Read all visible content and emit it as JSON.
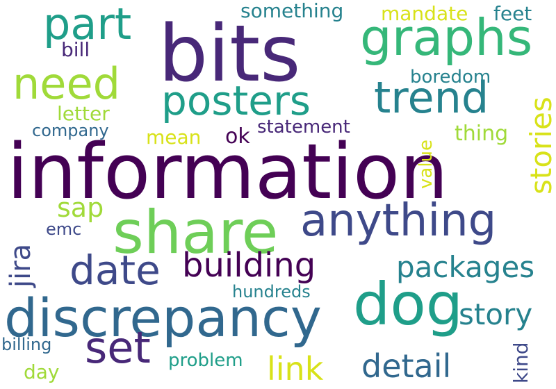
{
  "words": {
    "information": "information",
    "bits": "bits",
    "share": "share",
    "discrepancy": "discrepancy",
    "dog": "dog",
    "anything": "anything",
    "graphs": "graphs",
    "trend": "trend",
    "posters": "posters",
    "part": "part",
    "need": "need",
    "date": "date",
    "building": "building",
    "set": "set",
    "packages": "packages",
    "story": "story",
    "detail": "detail",
    "link": "link",
    "sap": "sap",
    "hundreds": "hundreds",
    "problem": "problem",
    "something": "something",
    "mandate": "mandate",
    "feet": "feet",
    "bill": "bill",
    "boredom": "boredom",
    "letter": "letter",
    "statement": "statement",
    "company": "company",
    "mean": "mean",
    "ok": "ok",
    "thing": "thing",
    "emc": "emc",
    "billing": "billing",
    "day": "day",
    "stories": "stories",
    "value": "value",
    "jira": "jira",
    "kind": "kind"
  },
  "palette": {
    "d1": "#440154",
    "d2": "#482878",
    "d3": "#3e4989",
    "b1": "#31688e",
    "b2": "#26828e",
    "t1": "#1f9e89",
    "t2": "#35b779",
    "g1": "#6ece58",
    "g2": "#a0da39",
    "y": "#d8e219",
    "background": "#ffffff"
  }
}
